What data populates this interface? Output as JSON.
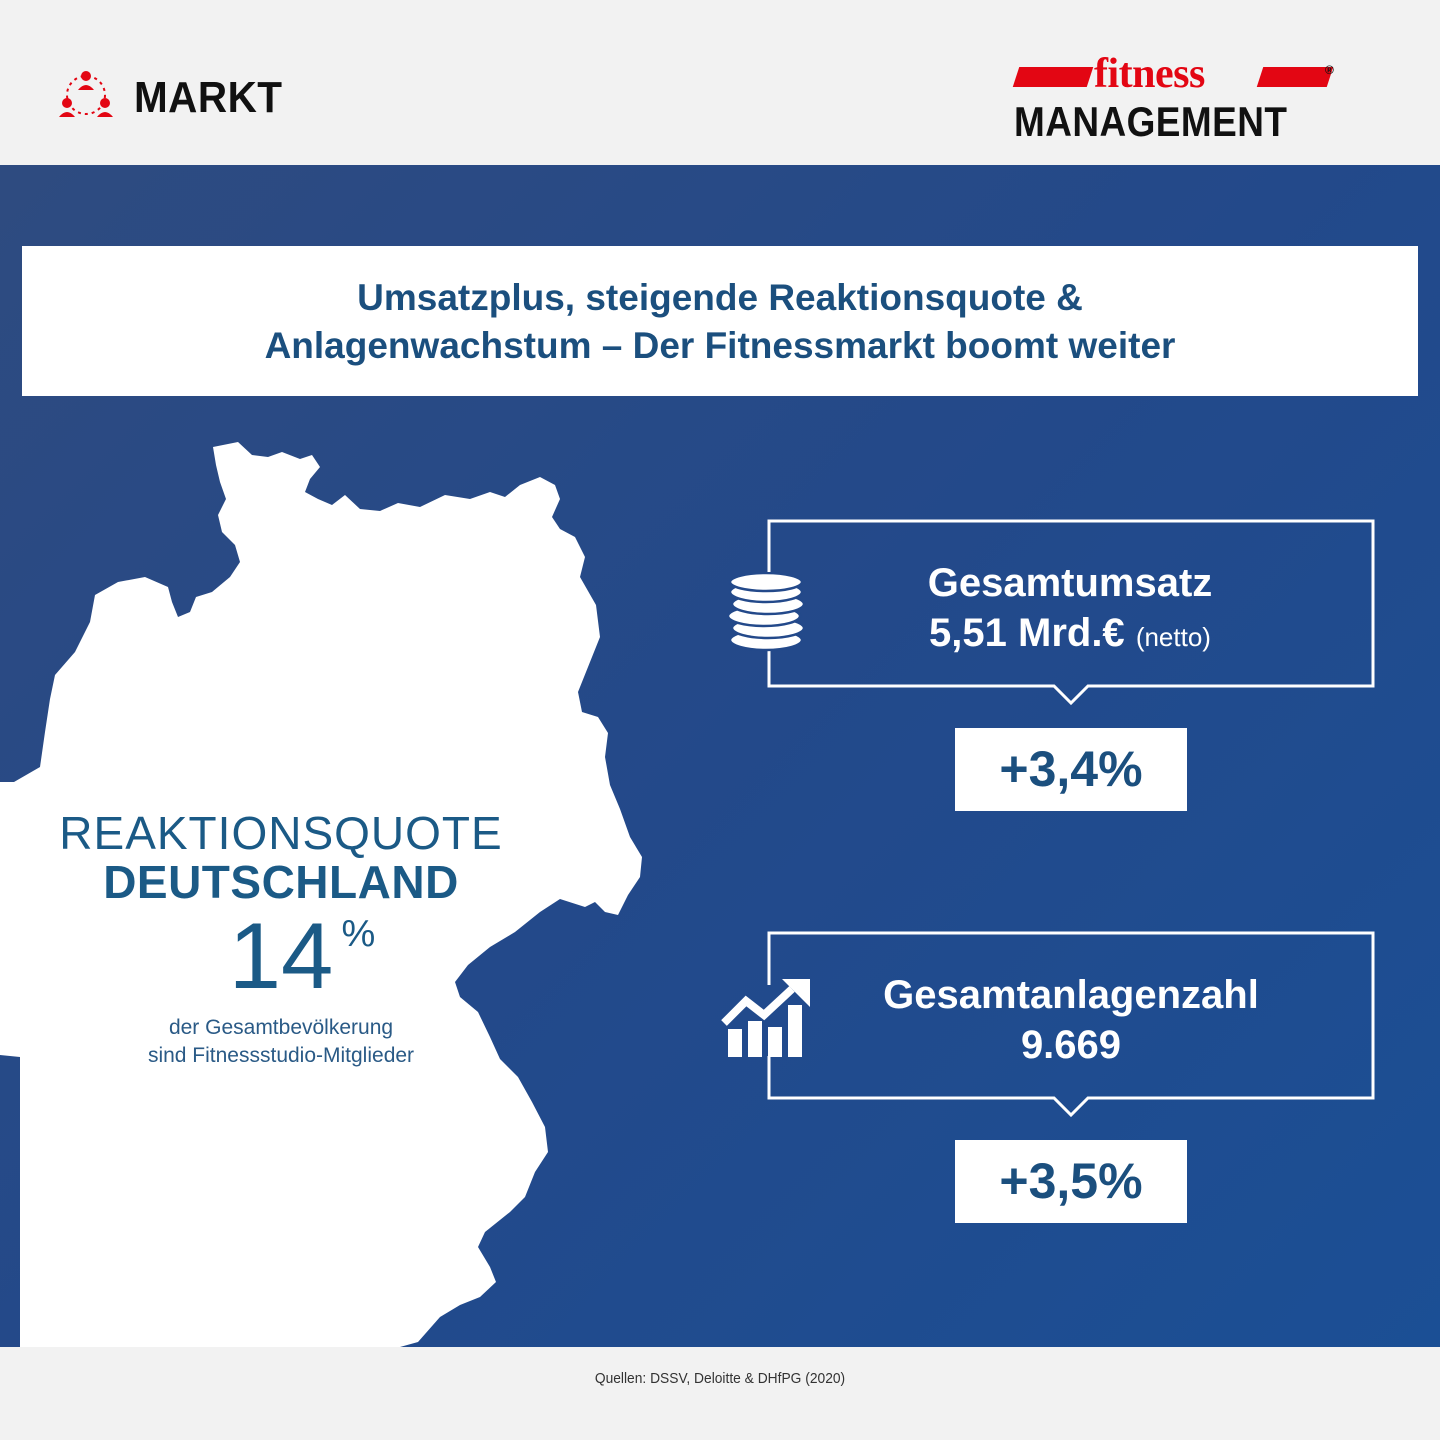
{
  "header": {
    "section_label": "MARKT",
    "section_icon": "people-network-icon",
    "logo": {
      "word_1": "fitness",
      "word_2": "MANAGEMENT",
      "registered": "®"
    }
  },
  "headline": {
    "line_1": "Umsatzplus, steigende Reaktionsquote &",
    "line_2": "Anlagenwachstum – Der Fitnessmarkt boomt weiter"
  },
  "reaktionsquote": {
    "title_light": "REAKTIONSQUOTE",
    "title_bold": "DEUTSCHLAND",
    "value": "14",
    "unit": "%",
    "desc_line_1": "der Gesamtbevölkerung",
    "desc_line_2": "sind Fitnessstudio-Mitglieder"
  },
  "stats": [
    {
      "icon": "coin-stack-icon",
      "title": "Gesamtumsatz",
      "value": "5,51 Mrd.€",
      "note": "(netto)",
      "change": "+3,4%"
    },
    {
      "icon": "growth-chart-icon",
      "title": "Gesamtanlagenzahl",
      "value": "9.669",
      "note": "",
      "change": "+3,5%"
    }
  ],
  "sources": "Quellen: DSSV, Deloitte & DHfPG (2020)",
  "colors": {
    "brand_red": "#e30613",
    "navy": "#23498a",
    "headline_blue": "#1b4f7e"
  }
}
